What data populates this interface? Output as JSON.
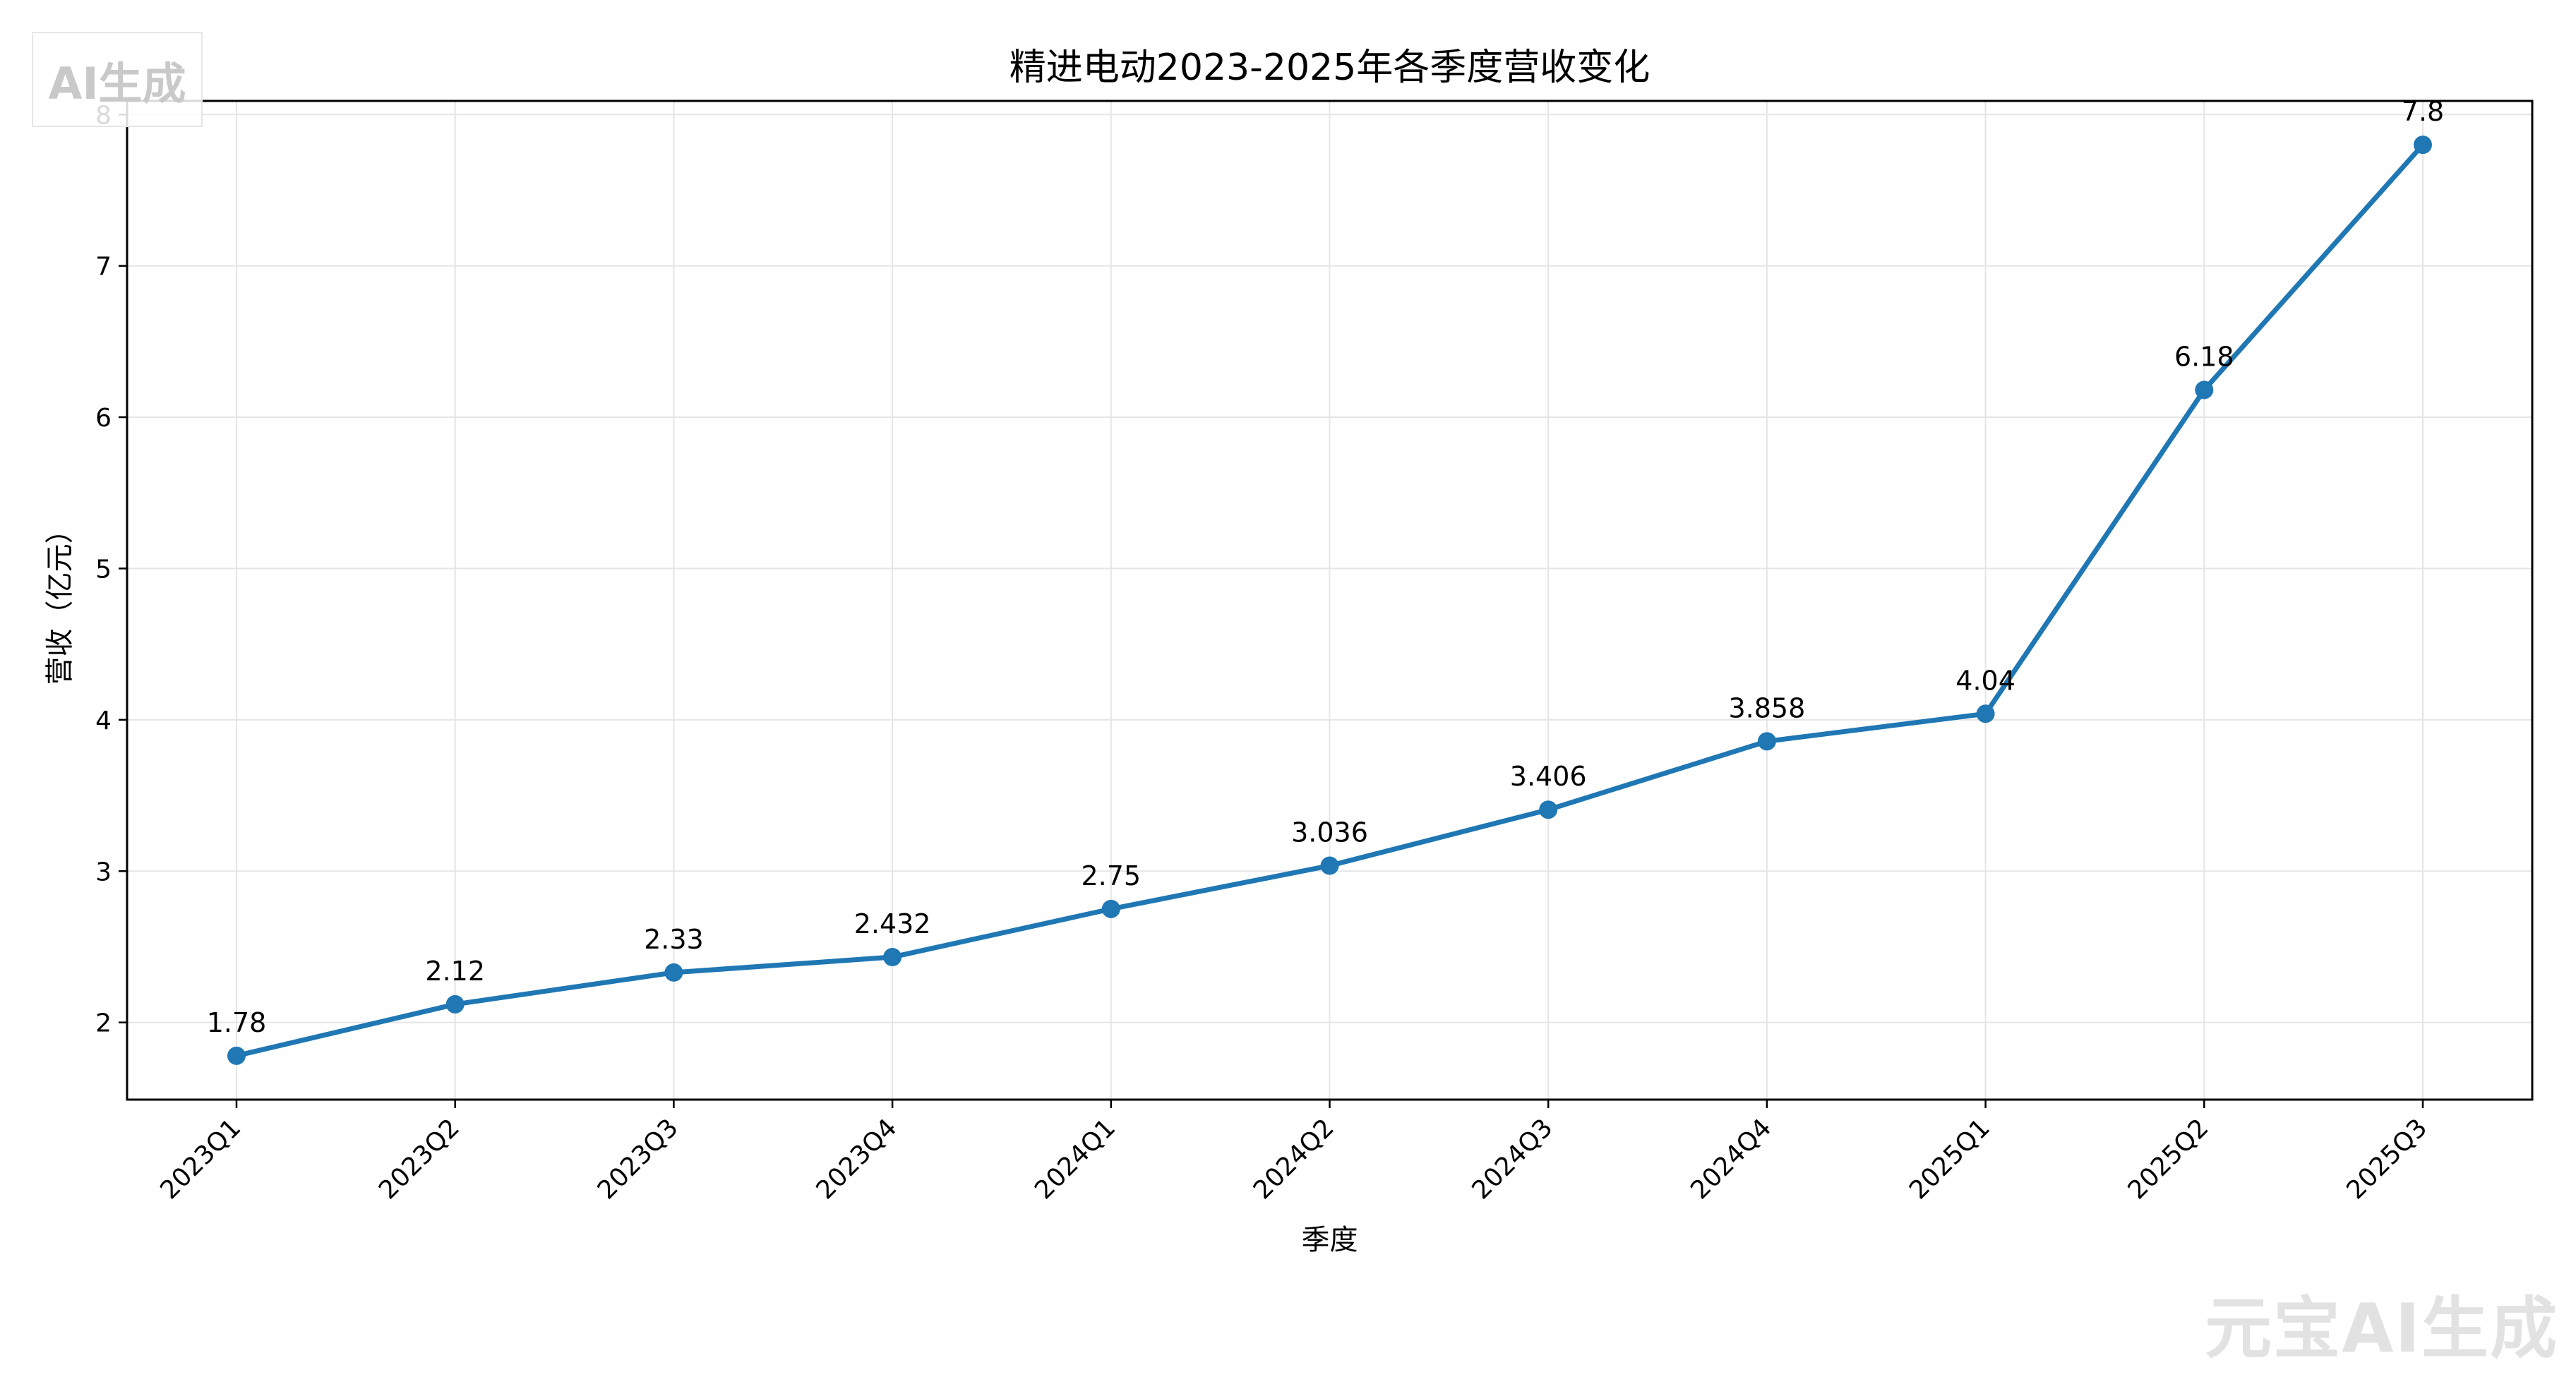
{
  "watermarks": {
    "top_left": "AI生成",
    "bottom_right": "元宝AI生成"
  },
  "colors": {
    "line": "#1f77b4",
    "grid": "#e5e5e5",
    "axis": "#000000"
  },
  "chart_data": {
    "type": "line",
    "title": "精进电动2023-2025年各季度营收变化",
    "xlabel": "季度",
    "ylabel": "营收（亿元）",
    "categories": [
      "2023Q1",
      "2023Q2",
      "2023Q3",
      "2023Q4",
      "2024Q1",
      "2024Q2",
      "2024Q3",
      "2024Q4",
      "2025Q1",
      "2025Q2",
      "2025Q3"
    ],
    "series": [
      {
        "values": [
          1.78,
          2.12,
          2.33,
          2.432,
          2.75,
          3.036,
          3.406,
          3.858,
          4.04,
          6.18,
          7.8
        ],
        "labels": [
          "1.78",
          "2.12",
          "2.33",
          "2.432",
          "2.75",
          "3.036",
          "3.406",
          "3.858",
          "4.04",
          "6.18",
          "7.8"
        ]
      }
    ],
    "yticks": [
      2,
      3,
      4,
      5,
      6,
      7,
      8
    ],
    "ylim": [
      1.49,
      8.09
    ],
    "grid": true,
    "markers": true
  }
}
